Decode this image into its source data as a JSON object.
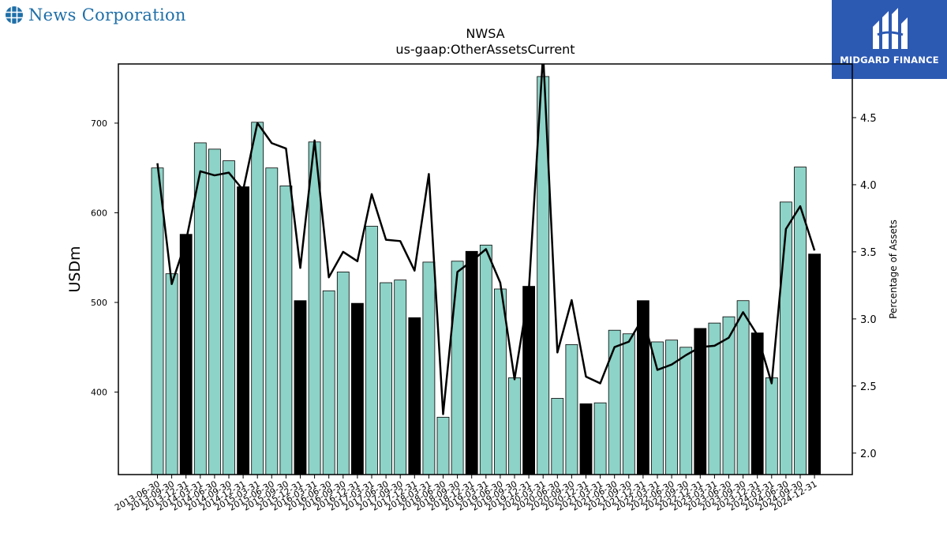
{
  "brand": {
    "company_name": "News Corporation",
    "company_icon": "globe-icon",
    "publisher_name": "MIDGARD FINANCE",
    "publisher_icon": "midgard-logo-icon",
    "publisher_bg": "#2c59b2"
  },
  "chart_data": {
    "type": "bar",
    "title": "NWSA",
    "subtitle": "us-gaap:OtherAssetsCurrent",
    "ylabel": "USDm",
    "y2label": "Percentage of Assets",
    "ylim": [
      308,
      766
    ],
    "y2lim": [
      1.84,
      4.9
    ],
    "yticks": [
      400,
      500,
      600,
      700
    ],
    "y2ticks": [
      2.0,
      2.5,
      3.0,
      3.5,
      4.0,
      4.5
    ],
    "colors": {
      "bar_default": "#8dd3c7",
      "bar_highlight": "#000000",
      "line": "#000000"
    },
    "categories": [
      "2013-06-30",
      "2013-09-30",
      "2013-12-31",
      "2014-03-31",
      "2014-06-30",
      "2014-09-30",
      "2014-12-31",
      "2015-03-31",
      "2015-06-30",
      "2015-09-30",
      "2015-12-31",
      "2016-03-31",
      "2016-06-30",
      "2016-09-30",
      "2016-12-31",
      "2017-03-31",
      "2017-06-30",
      "2017-09-30",
      "2017-12-31",
      "2018-03-31",
      "2018-06-30",
      "2018-09-30",
      "2018-12-31",
      "2019-03-31",
      "2019-06-30",
      "2019-09-30",
      "2019-12-31",
      "2020-03-31",
      "2020-06-30",
      "2020-09-30",
      "2020-12-31",
      "2021-03-31",
      "2021-06-30",
      "2021-09-30",
      "2021-12-31",
      "2022-03-31",
      "2022-06-30",
      "2022-09-30",
      "2022-12-31",
      "2023-03-31",
      "2023-06-30",
      "2023-09-30",
      "2023-12-31",
      "2024-03-31",
      "2024-06-30",
      "2024-09-30",
      "2024-12-31"
    ],
    "series": [
      {
        "values": [
          650,
          532,
          576,
          678,
          671,
          658,
          629,
          701,
          650,
          630,
          502,
          679,
          513,
          534,
          499,
          585,
          522,
          525,
          483,
          545,
          372,
          546,
          557,
          564,
          515,
          416,
          518,
          752,
          393,
          453,
          387,
          388,
          469,
          465,
          502,
          456,
          458,
          450,
          471,
          477,
          484,
          502,
          466,
          416,
          612,
          651,
          554
        ],
        "highlight": [
          false,
          false,
          true,
          false,
          false,
          false,
          true,
          false,
          false,
          false,
          true,
          false,
          false,
          false,
          true,
          false,
          false,
          false,
          true,
          false,
          false,
          false,
          true,
          false,
          false,
          false,
          true,
          false,
          false,
          false,
          true,
          false,
          false,
          false,
          true,
          false,
          false,
          false,
          true,
          false,
          false,
          false,
          true,
          false,
          false,
          false,
          true
        ]
      },
      {
        "axis": "right",
        "values": [
          4.16,
          3.26,
          3.58,
          4.1,
          4.07,
          4.09,
          3.96,
          4.46,
          4.31,
          4.27,
          3.38,
          4.33,
          3.31,
          3.5,
          3.43,
          3.93,
          3.59,
          3.58,
          3.36,
          4.08,
          2.29,
          3.35,
          3.43,
          3.52,
          3.27,
          2.55,
          3.21,
          4.98,
          2.75,
          3.14,
          2.57,
          2.52,
          2.79,
          2.83,
          3.01,
          2.62,
          2.66,
          2.73,
          2.79,
          2.8,
          2.86,
          3.05,
          2.88,
          2.52,
          3.67,
          3.84,
          3.51
        ]
      }
    ]
  }
}
